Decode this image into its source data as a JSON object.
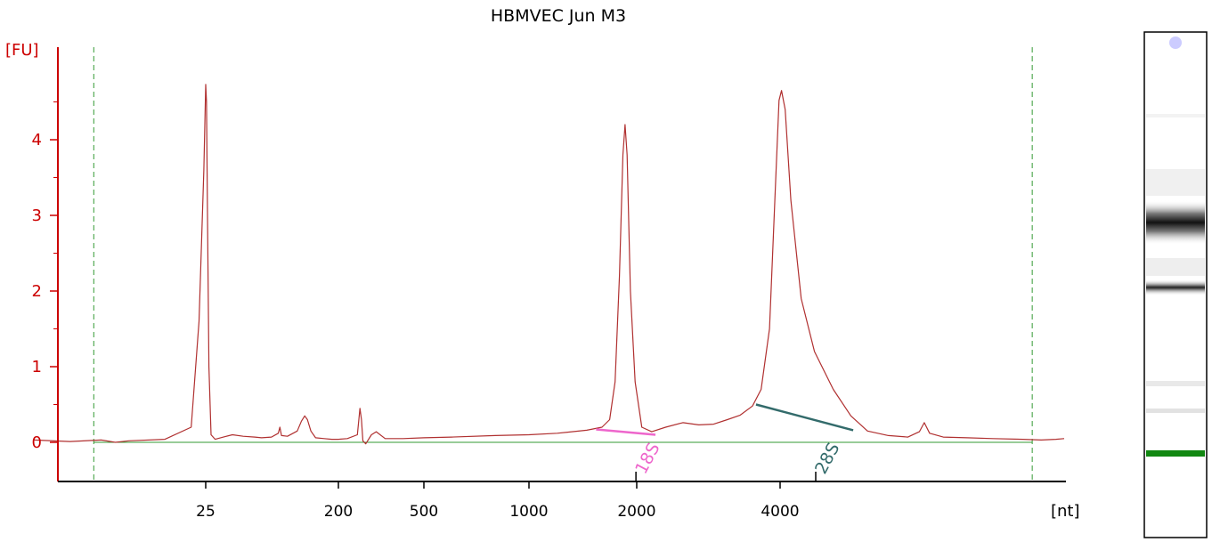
{
  "chart_data": {
    "type": "line",
    "title": "HBMVEC Jun M3",
    "y_unit_label": "[FU]",
    "x_unit_label": "[nt]",
    "ylim": [
      -0.5,
      5.3
    ],
    "y_ticks": [
      {
        "value": 0,
        "label": "0"
      },
      {
        "value": 1,
        "label": "1"
      },
      {
        "value": 2,
        "label": "2"
      },
      {
        "value": 3,
        "label": "3"
      },
      {
        "value": 4,
        "label": "4"
      }
    ],
    "x_ticks": [
      {
        "value": 25,
        "label": "25"
      },
      {
        "value": 200,
        "label": "200"
      },
      {
        "value": 500,
        "label": "500"
      },
      {
        "value": 1000,
        "label": "1000"
      },
      {
        "value": 2000,
        "label": "2000"
      },
      {
        "value": 4000,
        "label": "4000"
      }
    ],
    "series": [
      {
        "color": "#b03030",
        "points": [
          [
            12,
            0.03
          ],
          [
            14,
            0.01
          ],
          [
            16,
            0.03
          ],
          [
            17,
            0.0
          ],
          [
            18,
            0.02
          ],
          [
            21,
            0.04
          ],
          [
            23.5,
            0.2
          ],
          [
            24.3,
            1.6
          ],
          [
            24.8,
            3.6
          ],
          [
            25,
            4.73
          ],
          [
            25.3,
            4.5
          ],
          [
            25.7,
            3.0
          ],
          [
            26.3,
            1.0
          ],
          [
            27.2,
            0.1
          ],
          [
            29,
            0.04
          ],
          [
            33,
            0.07
          ],
          [
            38,
            0.1
          ],
          [
            45,
            0.08
          ],
          [
            54,
            0.07
          ],
          [
            60,
            0.06
          ],
          [
            70,
            0.07
          ],
          [
            78,
            0.12
          ],
          [
            80,
            0.2
          ],
          [
            82,
            0.09
          ],
          [
            90,
            0.08
          ],
          [
            105,
            0.15
          ],
          [
            112,
            0.28
          ],
          [
            118,
            0.35
          ],
          [
            123,
            0.3
          ],
          [
            130,
            0.15
          ],
          [
            140,
            0.06
          ],
          [
            160,
            0.05
          ],
          [
            180,
            0.04
          ],
          [
            200,
            0.04
          ],
          [
            220,
            0.05
          ],
          [
            245,
            0.1
          ],
          [
            252,
            0.45
          ],
          [
            256,
            0.3
          ],
          [
            260,
            0.02
          ],
          [
            268,
            -0.02
          ],
          [
            285,
            0.1
          ],
          [
            300,
            0.14
          ],
          [
            330,
            0.05
          ],
          [
            400,
            0.05
          ],
          [
            500,
            0.06
          ],
          [
            600,
            0.07
          ],
          [
            800,
            0.09
          ],
          [
            1000,
            0.1
          ],
          [
            1200,
            0.12
          ],
          [
            1450,
            0.16
          ],
          [
            1600,
            0.2
          ],
          [
            1680,
            0.3
          ],
          [
            1740,
            0.8
          ],
          [
            1790,
            2.2
          ],
          [
            1830,
            3.8
          ],
          [
            1855,
            4.2
          ],
          [
            1880,
            3.8
          ],
          [
            1920,
            2.0
          ],
          [
            1980,
            0.8
          ],
          [
            2050,
            0.2
          ],
          [
            2150,
            0.14
          ],
          [
            2300,
            0.2
          ],
          [
            2500,
            0.26
          ],
          [
            2700,
            0.23
          ],
          [
            2900,
            0.24
          ],
          [
            3100,
            0.3
          ],
          [
            3300,
            0.36
          ],
          [
            3500,
            0.48
          ],
          [
            3650,
            0.7
          ],
          [
            3800,
            1.5
          ],
          [
            3900,
            3.2
          ],
          [
            3980,
            4.52
          ],
          [
            4020,
            4.65
          ],
          [
            4070,
            4.4
          ],
          [
            4150,
            3.2
          ],
          [
            4300,
            1.9
          ],
          [
            4500,
            1.2
          ],
          [
            4800,
            0.7
          ],
          [
            5100,
            0.35
          ],
          [
            5400,
            0.15
          ],
          [
            5800,
            0.09
          ],
          [
            6200,
            0.07
          ],
          [
            6450,
            0.14
          ],
          [
            6560,
            0.26
          ],
          [
            6680,
            0.12
          ],
          [
            7000,
            0.07
          ],
          [
            7600,
            0.06
          ],
          [
            8300,
            0.05
          ],
          [
            9200,
            0.04
          ],
          [
            9800,
            0.03
          ],
          [
            10300,
            0.04
          ],
          [
            10600,
            0.05
          ]
        ]
      }
    ],
    "baseline_color": "#339933",
    "markers": [
      {
        "x": 15.5,
        "color": "#339933"
      },
      {
        "x": 9500,
        "color": "#339933"
      }
    ],
    "annotations": [
      {
        "label": "18S",
        "color": "#ee66cc",
        "x_start": 1540,
        "y_start": 0.17,
        "x_end": 2190,
        "y_end": 0.1,
        "tick_x": 1990
      },
      {
        "label": "28S",
        "color": "#336b6b",
        "x_start": 3560,
        "y_start": 0.5,
        "x_end": 5140,
        "y_end": 0.16,
        "tick_x": 4520
      }
    ]
  },
  "gel_lane": {
    "marker_band_color": "#118811",
    "spot_color": "#ccccff"
  }
}
